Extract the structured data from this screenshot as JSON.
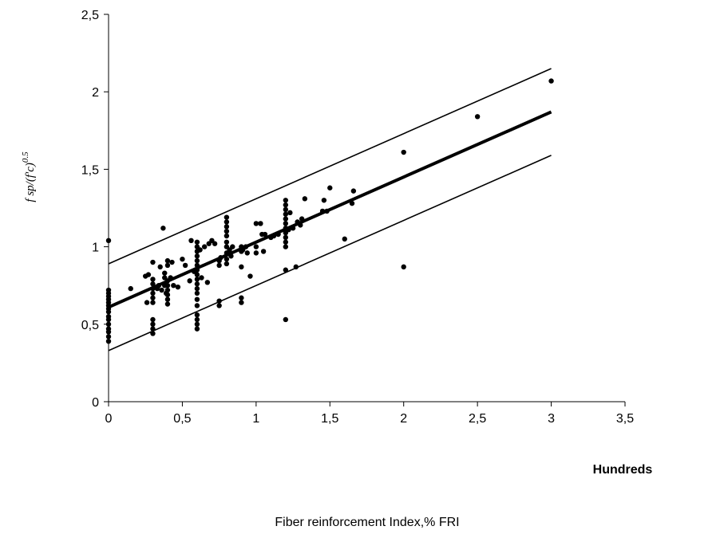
{
  "chart_data": {
    "type": "scatter",
    "title": "",
    "xlabel": "Fiber reinforcement Index,% FRI",
    "x_unit_label": "Hundreds",
    "ylabel_parts": {
      "base": "f sp/(f'c)",
      "exponent": "0.5"
    },
    "xlim": [
      0,
      3.5
    ],
    "ylim": [
      0,
      2.5
    ],
    "x_ticks": [
      "0",
      "0,5",
      "1",
      "1,5",
      "2",
      "2,5",
      "3",
      "3,5"
    ],
    "y_ticks": [
      "0",
      "0,5",
      "1",
      "1,5",
      "2",
      "2,5"
    ],
    "grid": false,
    "legend": "none",
    "colors": {
      "marks": "#000000"
    },
    "points": [
      [
        0,
        0.39
      ],
      [
        0,
        0.42
      ],
      [
        0,
        0.45
      ],
      [
        0,
        0.47
      ],
      [
        0,
        0.5
      ],
      [
        0,
        0.53
      ],
      [
        0,
        0.55
      ],
      [
        0,
        0.58
      ],
      [
        0,
        0.6
      ],
      [
        0,
        0.62
      ],
      [
        0,
        0.64
      ],
      [
        0,
        0.66
      ],
      [
        0,
        0.68
      ],
      [
        0,
        0.7
      ],
      [
        0,
        0.72
      ],
      [
        0,
        1.04
      ],
      [
        0.15,
        0.73
      ],
      [
        0.25,
        0.81
      ],
      [
        0.26,
        0.64
      ],
      [
        0.27,
        0.82
      ],
      [
        0.3,
        0.44
      ],
      [
        0.3,
        0.47
      ],
      [
        0.3,
        0.5
      ],
      [
        0.3,
        0.53
      ],
      [
        0.3,
        0.64
      ],
      [
        0.3,
        0.67
      ],
      [
        0.3,
        0.7
      ],
      [
        0.3,
        0.73
      ],
      [
        0.3,
        0.76
      ],
      [
        0.3,
        0.79
      ],
      [
        0.3,
        0.9
      ],
      [
        0.33,
        0.73
      ],
      [
        0.34,
        0.75
      ],
      [
        0.35,
        0.87
      ],
      [
        0.36,
        0.72
      ],
      [
        0.37,
        1.12
      ],
      [
        0.38,
        0.75
      ],
      [
        0.38,
        0.8
      ],
      [
        0.38,
        0.83
      ],
      [
        0.39,
        0.7
      ],
      [
        0.4,
        0.63
      ],
      [
        0.4,
        0.66
      ],
      [
        0.4,
        0.69
      ],
      [
        0.4,
        0.72
      ],
      [
        0.4,
        0.75
      ],
      [
        0.4,
        0.78
      ],
      [
        0.4,
        0.88
      ],
      [
        0.4,
        0.91
      ],
      [
        0.42,
        0.8
      ],
      [
        0.43,
        0.9
      ],
      [
        0.44,
        0.75
      ],
      [
        0.47,
        0.74
      ],
      [
        0.5,
        0.92
      ],
      [
        0.52,
        0.88
      ],
      [
        0.55,
        0.78
      ],
      [
        0.56,
        1.04
      ],
      [
        0.58,
        0.84
      ],
      [
        0.6,
        0.47
      ],
      [
        0.6,
        0.5
      ],
      [
        0.6,
        0.53
      ],
      [
        0.6,
        0.56
      ],
      [
        0.6,
        0.62
      ],
      [
        0.6,
        0.66
      ],
      [
        0.6,
        0.7
      ],
      [
        0.6,
        0.73
      ],
      [
        0.6,
        0.76
      ],
      [
        0.6,
        0.79
      ],
      [
        0.6,
        0.82
      ],
      [
        0.6,
        0.85
      ],
      [
        0.6,
        0.88
      ],
      [
        0.6,
        0.91
      ],
      [
        0.6,
        0.94
      ],
      [
        0.6,
        0.97
      ],
      [
        0.6,
        1.0
      ],
      [
        0.6,
        1.03
      ],
      [
        0.62,
        0.98
      ],
      [
        0.63,
        0.8
      ],
      [
        0.65,
        1.0
      ],
      [
        0.67,
        0.77
      ],
      [
        0.68,
        1.02
      ],
      [
        0.7,
        1.04
      ],
      [
        0.72,
        1.02
      ],
      [
        0.75,
        0.62
      ],
      [
        0.75,
        0.65
      ],
      [
        0.75,
        0.88
      ],
      [
        0.75,
        0.91
      ],
      [
        0.76,
        0.93
      ],
      [
        0.8,
        0.89
      ],
      [
        0.8,
        0.92
      ],
      [
        0.8,
        0.96
      ],
      [
        0.8,
        1.0
      ],
      [
        0.8,
        1.03
      ],
      [
        0.8,
        1.07
      ],
      [
        0.8,
        1.1
      ],
      [
        0.8,
        1.13
      ],
      [
        0.8,
        1.16
      ],
      [
        0.8,
        1.19
      ],
      [
        0.82,
        0.98
      ],
      [
        0.83,
        0.94
      ],
      [
        0.84,
        1.0
      ],
      [
        0.9,
        0.64
      ],
      [
        0.9,
        0.67
      ],
      [
        0.9,
        0.87
      ],
      [
        0.9,
        0.97
      ],
      [
        0.9,
        1.0
      ],
      [
        0.91,
        0.98
      ],
      [
        0.93,
        1.0
      ],
      [
        0.94,
        0.96
      ],
      [
        0.96,
        0.81
      ],
      [
        1.0,
        0.96
      ],
      [
        1.0,
        1.0
      ],
      [
        1.0,
        1.15
      ],
      [
        1.03,
        1.15
      ],
      [
        1.04,
        1.08
      ],
      [
        1.05,
        0.97
      ],
      [
        1.06,
        1.08
      ],
      [
        1.1,
        1.06
      ],
      [
        1.12,
        1.07
      ],
      [
        1.15,
        1.08
      ],
      [
        1.2,
        0.53
      ],
      [
        1.2,
        0.85
      ],
      [
        1.2,
        1.0
      ],
      [
        1.2,
        1.03
      ],
      [
        1.2,
        1.06
      ],
      [
        1.2,
        1.09
      ],
      [
        1.2,
        1.12
      ],
      [
        1.2,
        1.15
      ],
      [
        1.2,
        1.18
      ],
      [
        1.2,
        1.21
      ],
      [
        1.2,
        1.24
      ],
      [
        1.2,
        1.27
      ],
      [
        1.2,
        1.3
      ],
      [
        1.22,
        1.11
      ],
      [
        1.23,
        1.22
      ],
      [
        1.25,
        1.12
      ],
      [
        1.27,
        0.87
      ],
      [
        1.28,
        1.16
      ],
      [
        1.3,
        1.14
      ],
      [
        1.31,
        1.18
      ],
      [
        1.33,
        1.31
      ],
      [
        1.45,
        1.23
      ],
      [
        1.46,
        1.3
      ],
      [
        1.48,
        1.23
      ],
      [
        1.5,
        1.38
      ],
      [
        1.6,
        1.05
      ],
      [
        1.65,
        1.28
      ],
      [
        1.66,
        1.36
      ],
      [
        2.0,
        0.87
      ],
      [
        2.0,
        1.61
      ],
      [
        2.5,
        1.84
      ],
      [
        3.0,
        2.07
      ]
    ],
    "lines": [
      {
        "x": [
          0,
          3
        ],
        "y": [
          0.61,
          1.87
        ],
        "style": "fit"
      },
      {
        "x": [
          0,
          3
        ],
        "y": [
          0.89,
          2.15
        ],
        "style": "bound"
      },
      {
        "x": [
          0,
          3
        ],
        "y": [
          0.33,
          1.59
        ],
        "style": "bound"
      }
    ]
  }
}
